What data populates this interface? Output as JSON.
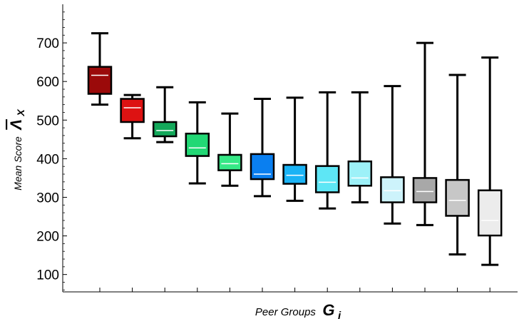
{
  "chart_data": {
    "type": "boxplot",
    "xlabel": "Peer Groups",
    "xlabel_symbol": "G",
    "xlabel_subscript": "i",
    "ylabel": "Mean Score",
    "ylabel_symbol": "Λ",
    "ylabel_subscript": "X",
    "ylim": [
      55,
      800
    ],
    "yticks": [
      100,
      200,
      300,
      400,
      500,
      600,
      700
    ],
    "grid": false,
    "legend": "none",
    "median_color": "#ffffff",
    "box_edge_color": "#000000",
    "groups": [
      {
        "min": 540,
        "q1": 568,
        "median": 616,
        "q3": 638,
        "max": 725,
        "color": "#9b0a0a"
      },
      {
        "min": 453,
        "q1": 495,
        "median": 532,
        "q3": 555,
        "max": 565,
        "color": "#dd1212"
      },
      {
        "min": 443,
        "q1": 458,
        "median": 473,
        "q3": 495,
        "max": 585,
        "color": "#13a85a"
      },
      {
        "min": 336,
        "q1": 407,
        "median": 428,
        "q3": 465,
        "max": 546,
        "color": "#22d875"
      },
      {
        "min": 330,
        "q1": 370,
        "median": 387,
        "q3": 410,
        "max": 517,
        "color": "#36e886"
      },
      {
        "min": 303,
        "q1": 347,
        "median": 360,
        "q3": 412,
        "max": 555,
        "color": "#0a7ff0"
      },
      {
        "min": 291,
        "q1": 335,
        "median": 357,
        "q3": 384,
        "max": 558,
        "color": "#1ab3f5"
      },
      {
        "min": 271,
        "q1": 313,
        "median": 339,
        "q3": 381,
        "max": 572,
        "color": "#5ee6f5"
      },
      {
        "min": 287,
        "q1": 330,
        "median": 350,
        "q3": 393,
        "max": 572,
        "color": "#9df1f8"
      },
      {
        "min": 232,
        "q1": 287,
        "median": 317,
        "q3": 352,
        "max": 588,
        "color": "#cdf3fb"
      },
      {
        "min": 228,
        "q1": 287,
        "median": 315,
        "q3": 350,
        "max": 700,
        "color": "#a8a8a8"
      },
      {
        "min": 152,
        "q1": 252,
        "median": 292,
        "q3": 345,
        "max": 617,
        "color": "#c7c7c7"
      },
      {
        "min": 125,
        "q1": 201,
        "median": 240,
        "q3": 318,
        "max": 662,
        "color": "#ececec"
      }
    ]
  }
}
